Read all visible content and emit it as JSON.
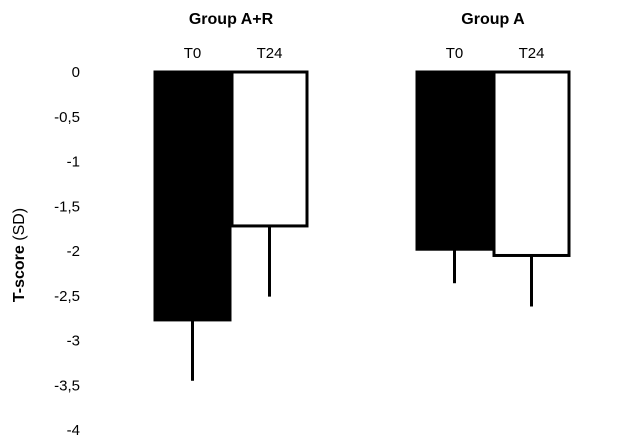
{
  "chart_data": {
    "type": "bar",
    "title": "",
    "xlabel": "",
    "ylabel": "T-score (SD)",
    "ylabel_bold": "T-score",
    "ylabel_rest": " (SD)",
    "ylim": [
      -4,
      0
    ],
    "yticks": [
      0,
      -0.5,
      -1,
      -1.5,
      -2,
      -2.5,
      -3,
      -3.5,
      -4
    ],
    "ytick_labels": [
      "0",
      "-0,5",
      "-1",
      "-1,5",
      "-2",
      "-2,5",
      "-3",
      "-3,5",
      "-4"
    ],
    "grid": false,
    "legend": "none",
    "groups": [
      {
        "name": "Group A+R",
        "bars": [
          {
            "label": "T0",
            "value": -2.77,
            "error_low": -3.45,
            "fill": "#000000"
          },
          {
            "label": "T24",
            "value": -1.72,
            "error_low": -2.51,
            "fill": "#ffffff"
          }
        ]
      },
      {
        "name": "Group A",
        "bars": [
          {
            "label": "T0",
            "value": -1.98,
            "error_low": -2.36,
            "fill": "#000000"
          },
          {
            "label": "T24",
            "value": -2.05,
            "error_low": -2.62,
            "fill": "#ffffff"
          }
        ]
      }
    ]
  }
}
